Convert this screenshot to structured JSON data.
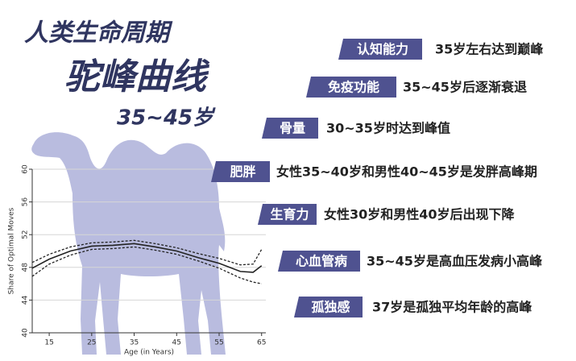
{
  "header": {
    "line1": "人类生命周期",
    "line2": "驼峰曲线",
    "line3": "35~45岁"
  },
  "items": [
    {
      "tag": "认知能力",
      "text": "35岁左右达到巅峰"
    },
    {
      "tag": "免疫功能",
      "text": "35~45岁后逐渐衰退"
    },
    {
      "tag": "骨量",
      "text": "30~35岁时达到峰值"
    },
    {
      "tag": "肥胖",
      "text": "女性35~40岁和男性40~45岁是发胖高峰期"
    },
    {
      "tag": "生育力",
      "text": "女性30岁和男性40岁后出现下降"
    },
    {
      "tag": "心血管病",
      "text": "35~45岁是高血压发病小高峰"
    },
    {
      "tag": "孤独感",
      "text": "37岁是孤独平均年龄的高峰"
    }
  ],
  "chart_data": {
    "type": "line",
    "x_label": "Age (in Years)",
    "y_label": "Share of Optimal Moves",
    "x": [
      11,
      15,
      20,
      25,
      30,
      35,
      40,
      45,
      50,
      55,
      60,
      63,
      65
    ],
    "series": [
      {
        "color": "#222222",
        "dashed": false,
        "values": [
          47.9,
          49.0,
          50.0,
          50.6,
          50.7,
          50.9,
          50.5,
          50.0,
          49.2,
          48.5,
          47.5,
          47.4,
          48.2
        ]
      },
      {
        "color": "#222222",
        "dashed": true,
        "values": [
          48.6,
          49.6,
          50.5,
          51.0,
          51.1,
          51.3,
          50.9,
          50.4,
          49.7,
          49.1,
          48.3,
          48.4,
          50.2
        ]
      },
      {
        "color": "#222222",
        "dashed": true,
        "values": [
          46.9,
          48.4,
          49.5,
          50.2,
          50.3,
          50.5,
          50.1,
          49.6,
          48.8,
          47.9,
          46.7,
          46.2,
          46.0
        ]
      }
    ],
    "xlim": [
      11,
      66
    ],
    "ylim": [
      40,
      60
    ],
    "xticks": [
      15,
      25,
      35,
      45,
      55,
      65
    ],
    "yticks": [
      40,
      44,
      48,
      52,
      56,
      60
    ],
    "grid": true
  }
}
